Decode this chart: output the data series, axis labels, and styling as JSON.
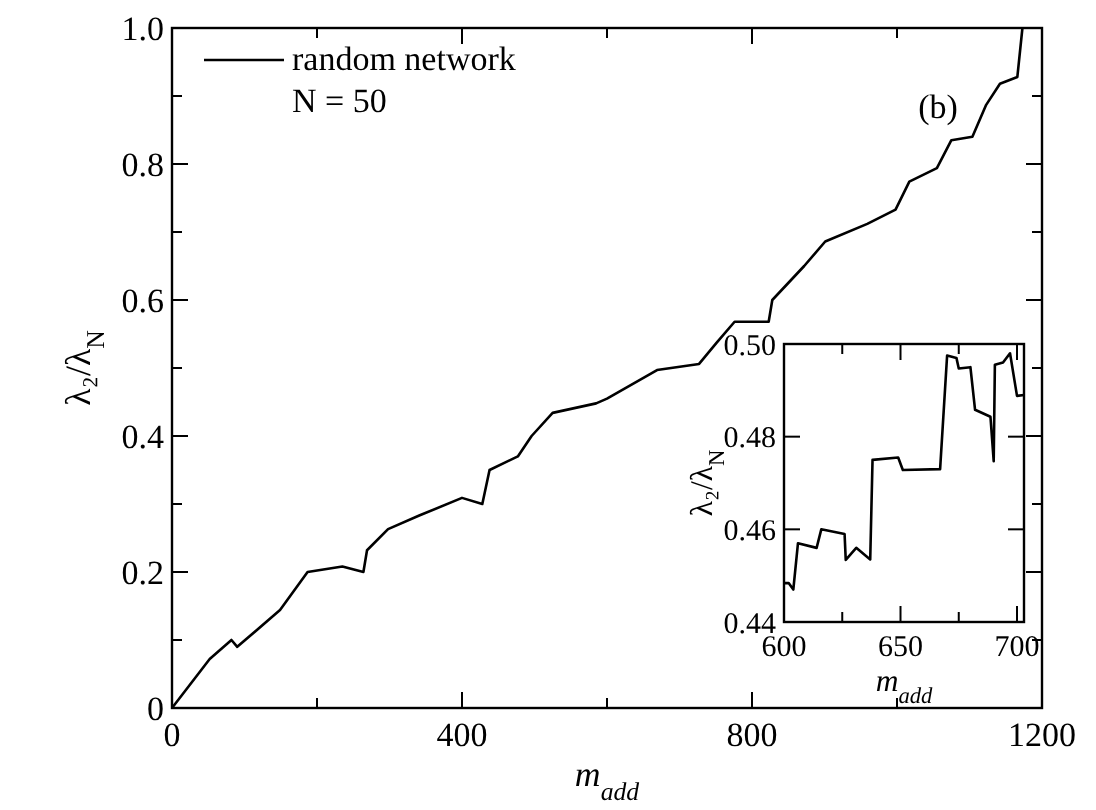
{
  "chart_data": [
    {
      "type": "line",
      "xlabel": "m$_{add}$",
      "ylabel": "λ₂/λ$_{N}$",
      "annotations": [
        "N = 50",
        "(b)"
      ],
      "legend": "top left",
      "xlim": [
        0,
        1200
      ],
      "ylim": [
        0,
        1
      ],
      "xticks": [
        0,
        {
          "value": 200,
          "label": null
        },
        400,
        {
          "value": 600,
          "label": null
        },
        800,
        {
          "value": 1000,
          "label": null
        },
        1200
      ],
      "yticks": [
        0,
        {
          "value": 0.1,
          "label": null
        },
        0.2,
        {
          "value": 0.3,
          "label": null
        },
        0.4,
        {
          "value": 0.5,
          "label": null
        },
        0.6,
        {
          "value": 0.7,
          "label": null
        },
        0.8,
        {
          "value": 0.9,
          "label": null
        },
        {
          "value": 1,
          "label": "1.0"
        }
      ],
      "series": [
        {
          "name": "random network",
          "color": "#000000",
          "x": [
            0,
            52,
            82,
            90,
            149,
            187,
            235,
            264,
            269,
            298,
            341,
            400,
            428,
            438,
            477,
            496,
            525,
            585,
            600,
            669,
            727,
            751,
            776,
            823,
            828,
            872,
            901,
            959,
            998,
            1017,
            1055,
            1075,
            1104,
            1123,
            1142,
            1166,
            1173
          ],
          "values": [
            0,
            0.072,
            0.1,
            0.09,
            0.144,
            0.2,
            0.208,
            0.2,
            0.232,
            0.263,
            0.283,
            0.309,
            0.3,
            0.35,
            0.37,
            0.4,
            0.434,
            0.448,
            0.455,
            0.497,
            0.506,
            0.537,
            0.568,
            0.568,
            0.6,
            0.65,
            0.686,
            0.712,
            0.733,
            0.774,
            0.794,
            0.835,
            0.84,
            0.887,
            0.918,
            0.928,
            1.0
          ]
        }
      ]
    },
    {
      "type": "line",
      "xlabel": "m$_{add}$",
      "ylabel": "λ₂/λ$_{N}$",
      "xlim": [
        600,
        703
      ],
      "ylim": [
        0.44,
        0.5
      ],
      "xticks": [
        600,
        {
          "value": 625,
          "label": null
        },
        650,
        {
          "value": 675,
          "label": null
        },
        700
      ],
      "yticks": [
        0.44,
        0.46,
        0.48,
        {
          "value": 0.5,
          "label": "0.50"
        }
      ],
      "series": [
        {
          "color": "#000000",
          "x": [
            600,
            602,
            604,
            606,
            614,
            616,
            626,
            626.5,
            631,
            637,
            638,
            649,
            651,
            667,
            670,
            674,
            675,
            680,
            682,
            688.6,
            690,
            690.5,
            694,
            697,
            700,
            703
          ],
          "values": [
            0.4484,
            0.4484,
            0.447,
            0.457,
            0.456,
            0.46,
            0.459,
            0.4534,
            0.456,
            0.4535,
            0.475,
            0.4755,
            0.4728,
            0.473,
            0.4975,
            0.497,
            0.4947,
            0.495,
            0.4858,
            0.4843,
            0.4747,
            0.4955,
            0.496,
            0.498,
            0.4888,
            0.489
          ]
        }
      ]
    }
  ]
}
